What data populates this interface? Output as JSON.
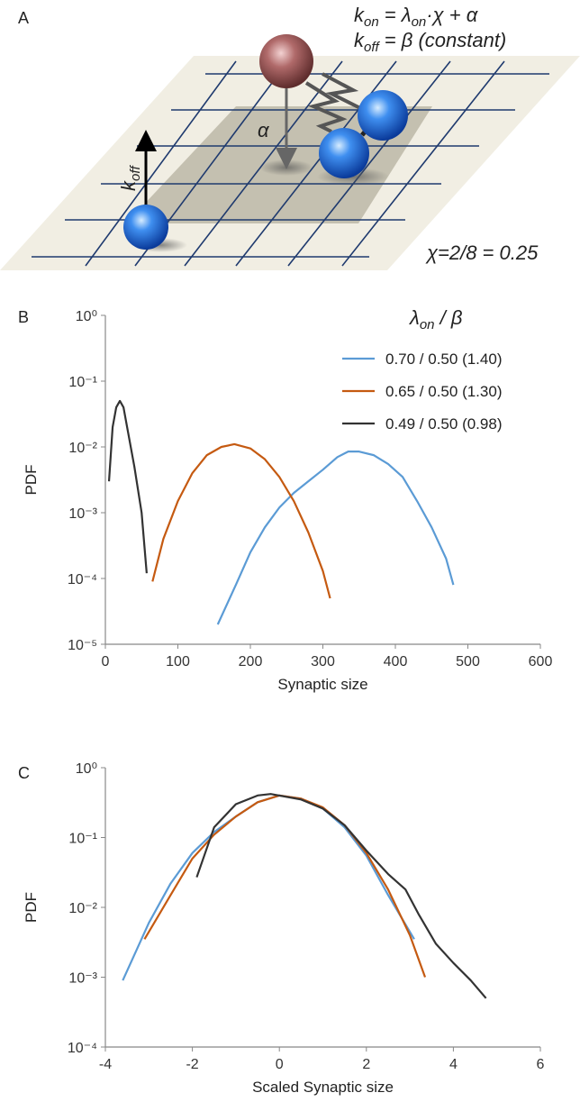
{
  "panel_labels": [
    "A",
    "B",
    "C"
  ],
  "diagram": {
    "equation_1": [
      "k",
      "on",
      " = λ",
      "on",
      "·χ + α"
    ],
    "equation_2": [
      "k",
      "off",
      " = β (constant)"
    ],
    "alpha_label": "α",
    "koff_label": [
      "k",
      "off"
    ],
    "chi_label": "χ=2/8 = 0.25"
  },
  "chart_data": [
    {
      "type": "line",
      "y_label": "PDF",
      "x_label": "Synaptic size",
      "yscale": "log",
      "xlim": [
        0,
        600
      ],
      "xticks": [
        0,
        100,
        200,
        300,
        400,
        500,
        600
      ],
      "ylim": [
        1e-05,
        1
      ],
      "yticks": [
        {
          "value": 1e-05,
          "label": "10⁻⁵"
        },
        {
          "value": 0.0001,
          "label": "10⁻⁴"
        },
        {
          "value": 0.001,
          "label": "10⁻³"
        },
        {
          "value": 0.01,
          "label": "10⁻²"
        },
        {
          "value": 0.1,
          "label": "10⁻¹"
        },
        {
          "value": 1,
          "label": "10⁰"
        }
      ],
      "grid": false,
      "legend": "upper right",
      "legend_title": [
        "λ",
        "on",
        " / β"
      ],
      "series": [
        {
          "name": "0.70 / 0.50 (1.40)",
          "color": "#5b9bd5",
          "x": [
            155,
            180,
            200,
            220,
            240,
            260,
            280,
            300,
            320,
            335,
            350,
            370,
            390,
            410,
            430,
            450,
            470,
            480
          ],
          "values": [
            2e-05,
            8e-05,
            0.00025,
            0.0006,
            0.0012,
            0.002,
            0.003,
            0.0045,
            0.007,
            0.0085,
            0.0085,
            0.0075,
            0.0055,
            0.0035,
            0.0015,
            0.0006,
            0.0002,
            8e-05
          ]
        },
        {
          "name": "0.65 / 0.50 (1.30)",
          "color": "#c55a11",
          "x": [
            65,
            80,
            100,
            120,
            140,
            160,
            178,
            200,
            220,
            240,
            260,
            280,
            300,
            310
          ],
          "values": [
            9e-05,
            0.0004,
            0.0015,
            0.004,
            0.0075,
            0.01,
            0.011,
            0.0095,
            0.0065,
            0.0035,
            0.0015,
            0.0005,
            0.00013,
            5e-05
          ]
        },
        {
          "name": "0.49 / 0.50 (0.98)",
          "color": "#333333",
          "x": [
            5,
            10,
            15,
            20,
            25,
            30,
            40,
            50,
            57
          ],
          "values": [
            0.003,
            0.02,
            0.04,
            0.05,
            0.04,
            0.02,
            0.005,
            0.001,
            0.00012
          ]
        }
      ]
    },
    {
      "type": "line",
      "y_label": "PDF",
      "x_label": "Scaled Synaptic size",
      "yscale": "log",
      "xlim": [
        -4,
        6
      ],
      "xticks": [
        -4,
        -2,
        0,
        2,
        4,
        6
      ],
      "ylim": [
        0.0001,
        1
      ],
      "yticks": [
        {
          "value": 0.0001,
          "label": "10⁻⁴"
        },
        {
          "value": 0.001,
          "label": "10⁻³"
        },
        {
          "value": 0.01,
          "label": "10⁻²"
        },
        {
          "value": 0.1,
          "label": "10⁻¹"
        },
        {
          "value": 1,
          "label": "10⁰"
        }
      ],
      "grid": false,
      "series": [
        {
          "color": "#5b9bd5",
          "x": [
            -3.6,
            -3,
            -2.5,
            -2,
            -1.5,
            -1,
            -0.5,
            0,
            0.5,
            1,
            1.5,
            2,
            2.5,
            3.1
          ],
          "values": [
            0.0009,
            0.006,
            0.022,
            0.06,
            0.12,
            0.2,
            0.32,
            0.4,
            0.36,
            0.26,
            0.14,
            0.055,
            0.015,
            0.0035
          ]
        },
        {
          "color": "#c55a11",
          "x": [
            -3.1,
            -2.5,
            -2,
            -1.5,
            -1,
            -0.5,
            0,
            0.5,
            1,
            1.5,
            2,
            2.5,
            3,
            3.35
          ],
          "values": [
            0.0035,
            0.015,
            0.05,
            0.11,
            0.2,
            0.32,
            0.4,
            0.36,
            0.27,
            0.15,
            0.06,
            0.018,
            0.004,
            0.001
          ]
        },
        {
          "color": "#333333",
          "x": [
            -1.9,
            -1.5,
            -1,
            -0.5,
            -0.2,
            0.5,
            1,
            1.5,
            2,
            2.5,
            2.9,
            3.2,
            3.6,
            4,
            4.4,
            4.75
          ],
          "values": [
            0.027,
            0.14,
            0.3,
            0.4,
            0.42,
            0.35,
            0.26,
            0.15,
            0.065,
            0.03,
            0.018,
            0.008,
            0.003,
            0.0016,
            0.0009,
            0.0005
          ]
        }
      ]
    }
  ]
}
